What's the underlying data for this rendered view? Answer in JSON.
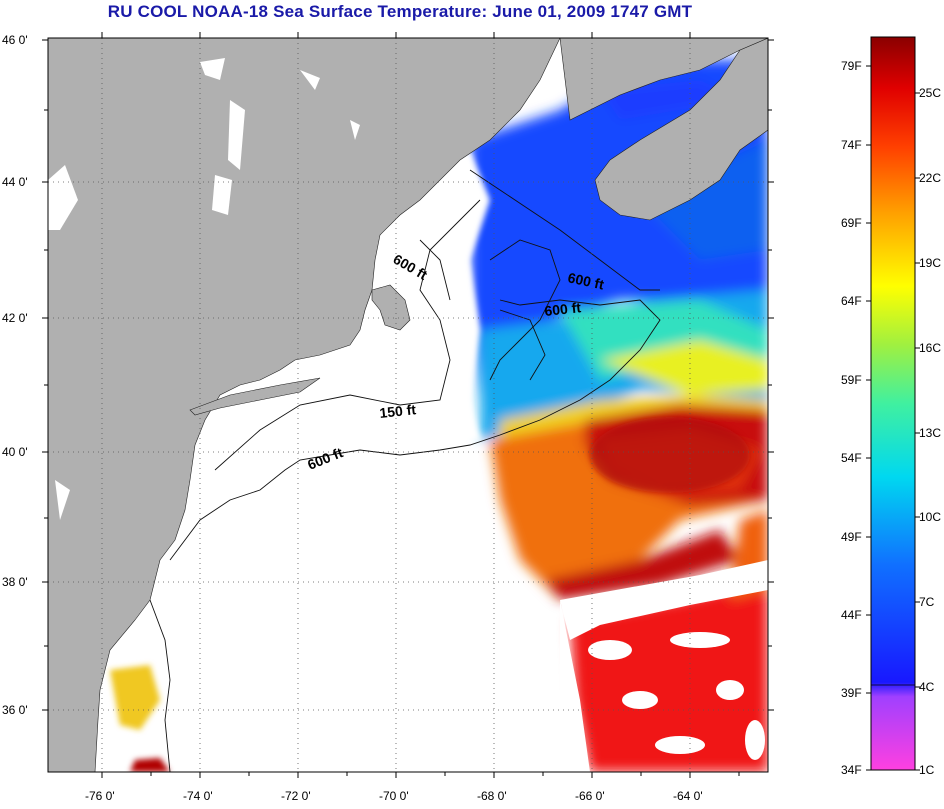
{
  "title": "RU COOL  NOAA-18  Sea Surface Temperature:  June 01, 2009 1747 GMT",
  "map": {
    "lat_labels": [
      "46 0'",
      "44 0'",
      "42 0'",
      "40 0'",
      "38 0'",
      "36 0'"
    ],
    "lon_labels": [
      "-76 0'",
      "-74 0'",
      "-72 0'",
      "-70 0'",
      "-68 0'",
      "-66 0'",
      "-64 0'"
    ],
    "contour_labels": [
      "600 ft",
      "600 ft",
      "600 ft",
      "150 ft",
      "600 ft"
    ],
    "colors": {
      "land": "#b0b0b0",
      "cloud": "#ffffff",
      "grid": "#555555"
    }
  },
  "colorbar": {
    "fahrenheit_labels": [
      "79F",
      "74F",
      "69F",
      "64F",
      "59F",
      "54F",
      "49F",
      "44F",
      "39F",
      "34F"
    ],
    "celsius_labels": [
      "25C",
      "22C",
      "19C",
      "16C",
      "13C",
      "10C",
      "7C",
      "4C",
      "1C"
    ],
    "range_c": [
      1,
      27
    ]
  }
}
